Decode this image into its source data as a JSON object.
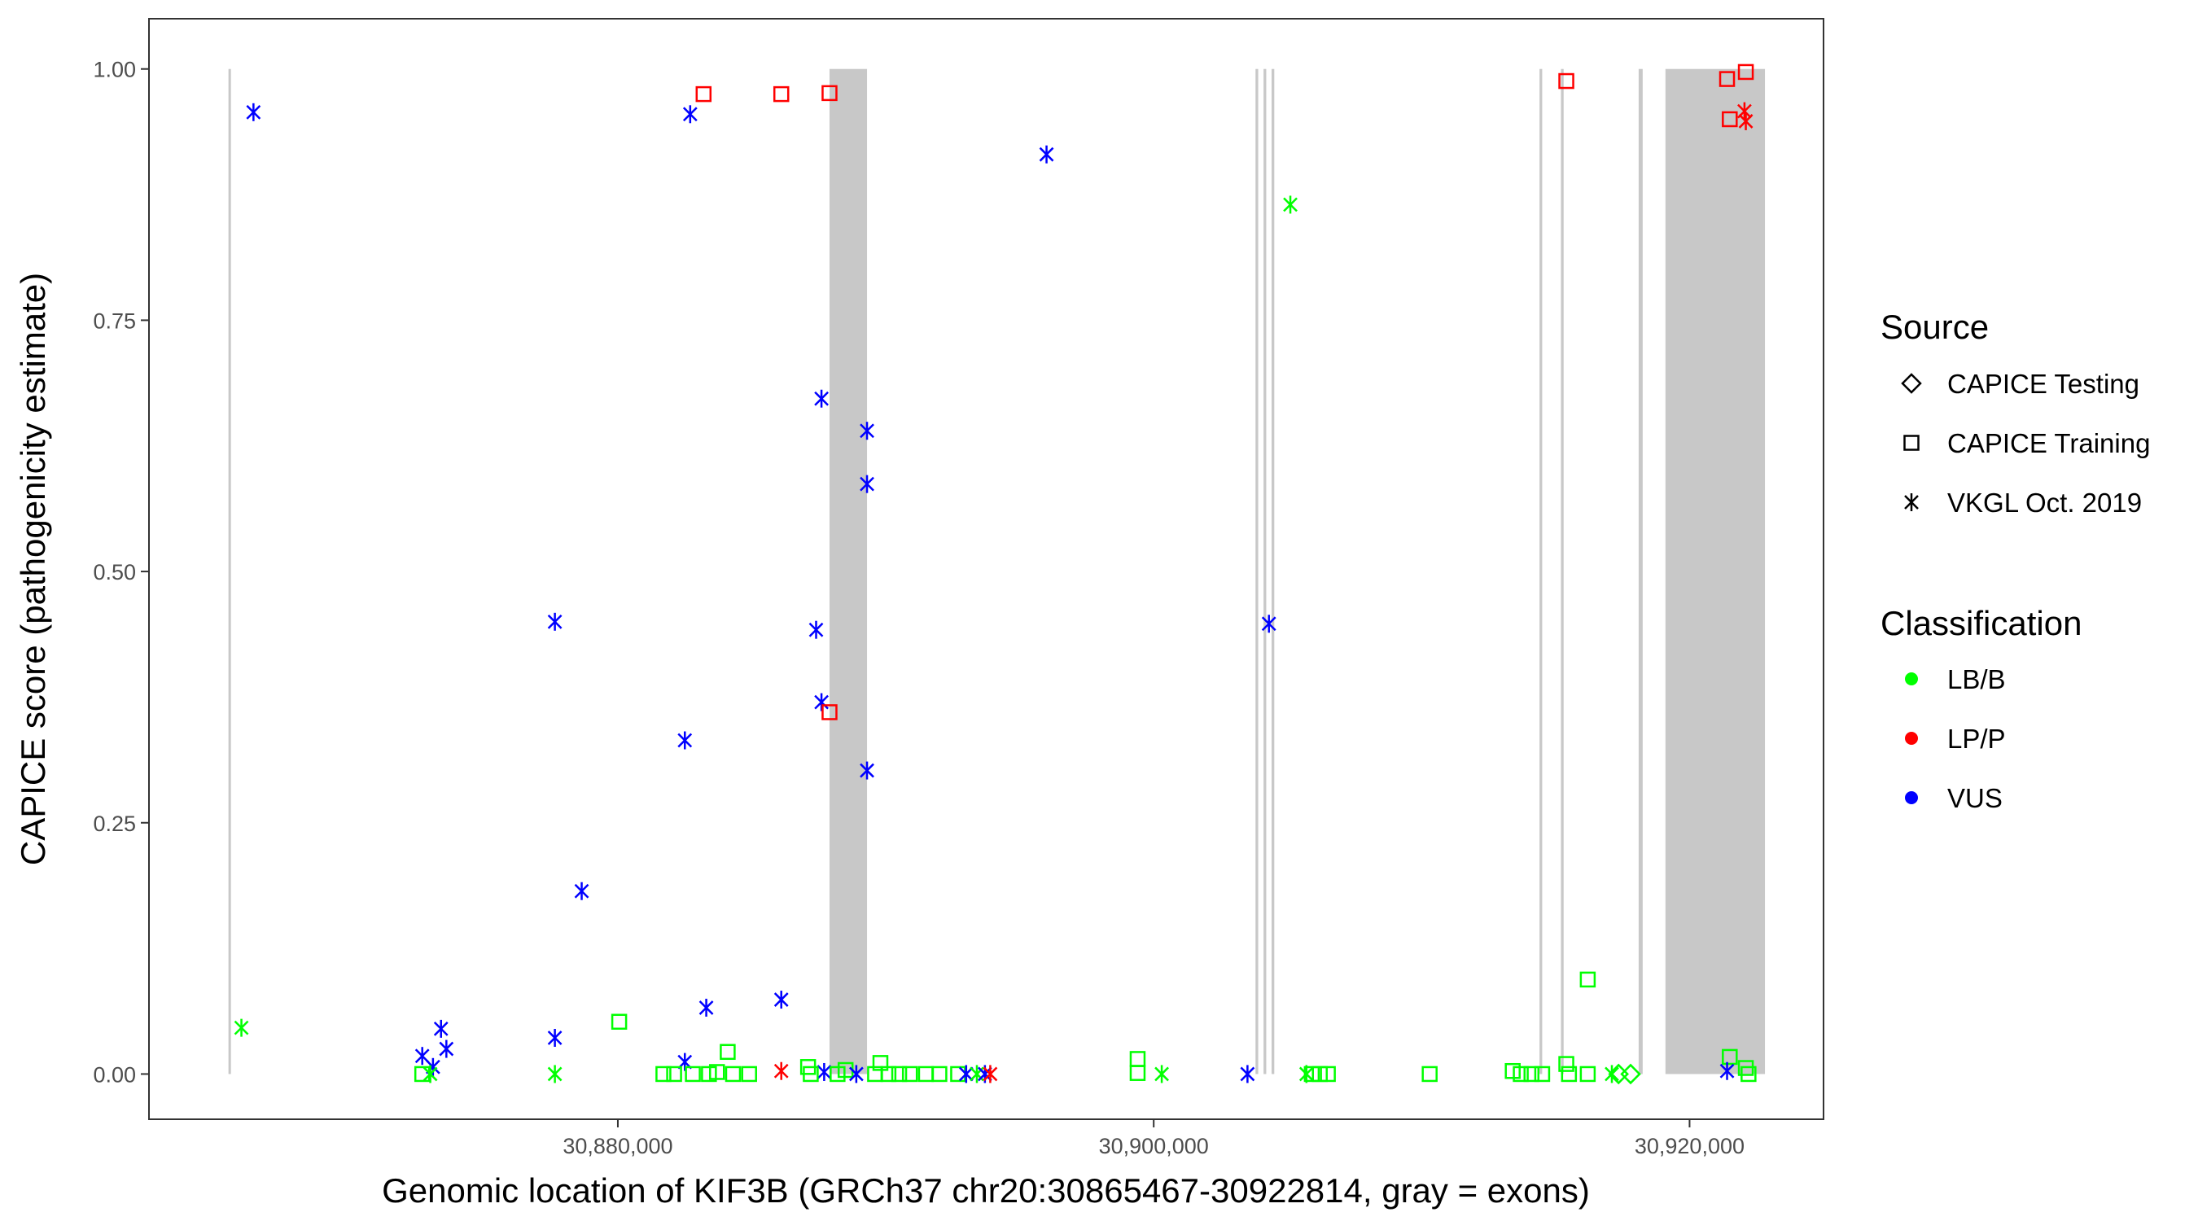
{
  "chart_data": {
    "type": "scatter",
    "xlabel": "Genomic location of KIF3B (GRCh37 chr20:30865467-30922814, gray = exons)",
    "ylabel": "CAPICE score (pathogenicity estimate)",
    "xlim": [
      30862500,
      30925000
    ],
    "ylim": [
      -0.045,
      1.05
    ],
    "x_ticks": [
      30880000,
      30900000,
      30920000
    ],
    "x_tick_labels": [
      "30,880,000",
      "30,900,000",
      "30,920,000"
    ],
    "y_ticks": [
      0,
      0.25,
      0.5,
      0.75,
      1
    ],
    "y_tick_labels": [
      "0.00",
      "0.25",
      "0.50",
      "0.75",
      "1.00"
    ],
    "grid": false,
    "exon_color": "#c8c8c8",
    "exons": [
      [
        30865467,
        30865520
      ],
      [
        30887900,
        30889300
      ],
      [
        30903800,
        30903900
      ],
      [
        30904100,
        30904200
      ],
      [
        30904400,
        30904500
      ],
      [
        30914400,
        30914500
      ],
      [
        30915200,
        30915300
      ],
      [
        30918100,
        30918250
      ],
      [
        30919100,
        30922814
      ]
    ],
    "legend_position": "right",
    "legend": {
      "source_title": "Source",
      "source_items": [
        {
          "label": "CAPICE Testing",
          "shape": "diamond"
        },
        {
          "label": "CAPICE Training",
          "shape": "square"
        },
        {
          "label": "VKGL Oct. 2019",
          "shape": "asterisk"
        }
      ],
      "class_title": "Classification",
      "class_items": [
        {
          "label": "LB/B",
          "color": "#00ff00"
        },
        {
          "label": "LP/P",
          "color": "#ff0000"
        },
        {
          "label": "VUS",
          "color": "#0000ff"
        }
      ]
    },
    "points": [
      {
        "x": 30866400,
        "y": 0.957,
        "shape": "asterisk",
        "class": "VUS"
      },
      {
        "x": 30865950,
        "y": 0.046,
        "shape": "asterisk",
        "class": "LB/B"
      },
      {
        "x": 30872700,
        "y": 0.018,
        "shape": "asterisk",
        "class": "VUS"
      },
      {
        "x": 30873100,
        "y": 0.007,
        "shape": "asterisk",
        "class": "VUS"
      },
      {
        "x": 30873400,
        "y": 0.045,
        "shape": "asterisk",
        "class": "VUS"
      },
      {
        "x": 30873600,
        "y": 0.025,
        "shape": "asterisk",
        "class": "VUS"
      },
      {
        "x": 30872700,
        "y": 0.0,
        "shape": "square",
        "class": "LB/B"
      },
      {
        "x": 30873000,
        "y": 0.0,
        "shape": "asterisk",
        "class": "LB/B"
      },
      {
        "x": 30877650,
        "y": 0.45,
        "shape": "asterisk",
        "class": "VUS"
      },
      {
        "x": 30877650,
        "y": 0.036,
        "shape": "asterisk",
        "class": "VUS"
      },
      {
        "x": 30877650,
        "y": 0.0,
        "shape": "asterisk",
        "class": "LB/B"
      },
      {
        "x": 30878650,
        "y": 0.182,
        "shape": "asterisk",
        "class": "VUS"
      },
      {
        "x": 30880050,
        "y": 0.052,
        "shape": "square",
        "class": "LB/B"
      },
      {
        "x": 30882700,
        "y": 0.955,
        "shape": "asterisk",
        "class": "VUS"
      },
      {
        "x": 30883200,
        "y": 0.975,
        "shape": "square",
        "class": "LP/P"
      },
      {
        "x": 30882500,
        "y": 0.332,
        "shape": "asterisk",
        "class": "VUS"
      },
      {
        "x": 30883300,
        "y": 0.066,
        "shape": "asterisk",
        "class": "VUS"
      },
      {
        "x": 30882500,
        "y": 0.012,
        "shape": "asterisk",
        "class": "VUS"
      },
      {
        "x": 30884100,
        "y": 0.022,
        "shape": "square",
        "class": "LB/B"
      },
      {
        "x": 30881700,
        "y": 0.0,
        "shape": "square",
        "class": "LB/B"
      },
      {
        "x": 30882100,
        "y": 0.0,
        "shape": "square",
        "class": "LB/B"
      },
      {
        "x": 30882800,
        "y": 0.0,
        "shape": "square",
        "class": "LB/B"
      },
      {
        "x": 30883400,
        "y": 0.0,
        "shape": "square",
        "class": "LB/B"
      },
      {
        "x": 30883700,
        "y": 0.002,
        "shape": "square",
        "class": "LB/B"
      },
      {
        "x": 30884300,
        "y": 0.0,
        "shape": "square",
        "class": "LB/B"
      },
      {
        "x": 30884900,
        "y": 0.0,
        "shape": "square",
        "class": "LB/B"
      },
      {
        "x": 30886100,
        "y": 0.975,
        "shape": "square",
        "class": "LP/P"
      },
      {
        "x": 30887900,
        "y": 0.976,
        "shape": "square",
        "class": "LP/P"
      },
      {
        "x": 30886100,
        "y": 0.074,
        "shape": "asterisk",
        "class": "VUS"
      },
      {
        "x": 30886100,
        "y": 0.003,
        "shape": "asterisk",
        "class": "LP/P"
      },
      {
        "x": 30887100,
        "y": 0.007,
        "shape": "square",
        "class": "LB/B"
      },
      {
        "x": 30887400,
        "y": 0.442,
        "shape": "asterisk",
        "class": "VUS"
      },
      {
        "x": 30887600,
        "y": 0.672,
        "shape": "asterisk",
        "class": "VUS"
      },
      {
        "x": 30887600,
        "y": 0.37,
        "shape": "asterisk",
        "class": "VUS"
      },
      {
        "x": 30887900,
        "y": 0.36,
        "shape": "square",
        "class": "LP/P"
      },
      {
        "x": 30887700,
        "y": 0.002,
        "shape": "asterisk",
        "class": "VUS"
      },
      {
        "x": 30887200,
        "y": 0.0,
        "shape": "square",
        "class": "LB/B"
      },
      {
        "x": 30888200,
        "y": 0.0,
        "shape": "square",
        "class": "LB/B"
      },
      {
        "x": 30888500,
        "y": 0.004,
        "shape": "square",
        "class": "LB/B"
      },
      {
        "x": 30888900,
        "y": 0.0,
        "shape": "asterisk",
        "class": "VUS"
      },
      {
        "x": 30889300,
        "y": 0.64,
        "shape": "asterisk",
        "class": "VUS"
      },
      {
        "x": 30889300,
        "y": 0.587,
        "shape": "asterisk",
        "class": "VUS"
      },
      {
        "x": 30889300,
        "y": 0.302,
        "shape": "asterisk",
        "class": "VUS"
      },
      {
        "x": 30889600,
        "y": 0.0,
        "shape": "square",
        "class": "LB/B"
      },
      {
        "x": 30889800,
        "y": 0.011,
        "shape": "square",
        "class": "LB/B"
      },
      {
        "x": 30890100,
        "y": 0.0,
        "shape": "square",
        "class": "LB/B"
      },
      {
        "x": 30890500,
        "y": 0.0,
        "shape": "square",
        "class": "LB/B"
      },
      {
        "x": 30890900,
        "y": 0.0,
        "shape": "square",
        "class": "LB/B"
      },
      {
        "x": 30891500,
        "y": 0.0,
        "shape": "square",
        "class": "LB/B"
      },
      {
        "x": 30892000,
        "y": 0.0,
        "shape": "square",
        "class": "LB/B"
      },
      {
        "x": 30892700,
        "y": 0.0,
        "shape": "square",
        "class": "LB/B"
      },
      {
        "x": 30893000,
        "y": 0.0,
        "shape": "asterisk",
        "class": "VUS"
      },
      {
        "x": 30893400,
        "y": 0.0,
        "shape": "asterisk",
        "class": "LB/B"
      },
      {
        "x": 30893700,
        "y": 0.0,
        "shape": "asterisk",
        "class": "VUS"
      },
      {
        "x": 30893900,
        "y": 0.0,
        "shape": "asterisk",
        "class": "LP/P"
      },
      {
        "x": 30896000,
        "y": 0.915,
        "shape": "asterisk",
        "class": "VUS"
      },
      {
        "x": 30899400,
        "y": 0.015,
        "shape": "square",
        "class": "LB/B"
      },
      {
        "x": 30899400,
        "y": 0.001,
        "shape": "square",
        "class": "LB/B"
      },
      {
        "x": 30900300,
        "y": 0.0,
        "shape": "asterisk",
        "class": "LB/B"
      },
      {
        "x": 30903500,
        "y": 0.0,
        "shape": "asterisk",
        "class": "VUS"
      },
      {
        "x": 30904300,
        "y": 0.448,
        "shape": "asterisk",
        "class": "VUS"
      },
      {
        "x": 30905100,
        "y": 0.865,
        "shape": "asterisk",
        "class": "LB/B"
      },
      {
        "x": 30905700,
        "y": 0.0,
        "shape": "asterisk",
        "class": "LB/B"
      },
      {
        "x": 30905900,
        "y": 0.0,
        "shape": "square",
        "class": "LB/B"
      },
      {
        "x": 30906200,
        "y": 0.0,
        "shape": "square",
        "class": "LB/B"
      },
      {
        "x": 30906500,
        "y": 0.0,
        "shape": "square",
        "class": "LB/B"
      },
      {
        "x": 30910300,
        "y": 0.0,
        "shape": "square",
        "class": "LB/B"
      },
      {
        "x": 30913400,
        "y": 0.003,
        "shape": "square",
        "class": "LB/B"
      },
      {
        "x": 30913700,
        "y": 0.0,
        "shape": "square",
        "class": "LB/B"
      },
      {
        "x": 30914100,
        "y": 0.0,
        "shape": "square",
        "class": "LB/B"
      },
      {
        "x": 30914500,
        "y": 0.0,
        "shape": "square",
        "class": "LB/B"
      },
      {
        "x": 30915400,
        "y": 0.988,
        "shape": "square",
        "class": "LP/P"
      },
      {
        "x": 30915400,
        "y": 0.01,
        "shape": "square",
        "class": "LB/B"
      },
      {
        "x": 30915500,
        "y": 0.0,
        "shape": "square",
        "class": "LB/B"
      },
      {
        "x": 30916200,
        "y": 0.094,
        "shape": "square",
        "class": "LB/B"
      },
      {
        "x": 30916200,
        "y": 0.0,
        "shape": "square",
        "class": "LB/B"
      },
      {
        "x": 30917100,
        "y": 0.0,
        "shape": "asterisk",
        "class": "LB/B"
      },
      {
        "x": 30917350,
        "y": 0.0,
        "shape": "diamond",
        "class": "LB/B"
      },
      {
        "x": 30917800,
        "y": 0.0,
        "shape": "diamond",
        "class": "LB/B"
      },
      {
        "x": 30921400,
        "y": 0.99,
        "shape": "square",
        "class": "LP/P"
      },
      {
        "x": 30922100,
        "y": 0.997,
        "shape": "square",
        "class": "LP/P"
      },
      {
        "x": 30921500,
        "y": 0.95,
        "shape": "square",
        "class": "LP/P"
      },
      {
        "x": 30922050,
        "y": 0.958,
        "shape": "asterisk",
        "class": "LP/P"
      },
      {
        "x": 30922100,
        "y": 0.948,
        "shape": "asterisk",
        "class": "LP/P"
      },
      {
        "x": 30921500,
        "y": 0.017,
        "shape": "square",
        "class": "LB/B"
      },
      {
        "x": 30922100,
        "y": 0.006,
        "shape": "square",
        "class": "LB/B"
      },
      {
        "x": 30921400,
        "y": 0.003,
        "shape": "asterisk",
        "class": "VUS"
      },
      {
        "x": 30922200,
        "y": 0.0,
        "shape": "square",
        "class": "LB/B"
      }
    ]
  }
}
